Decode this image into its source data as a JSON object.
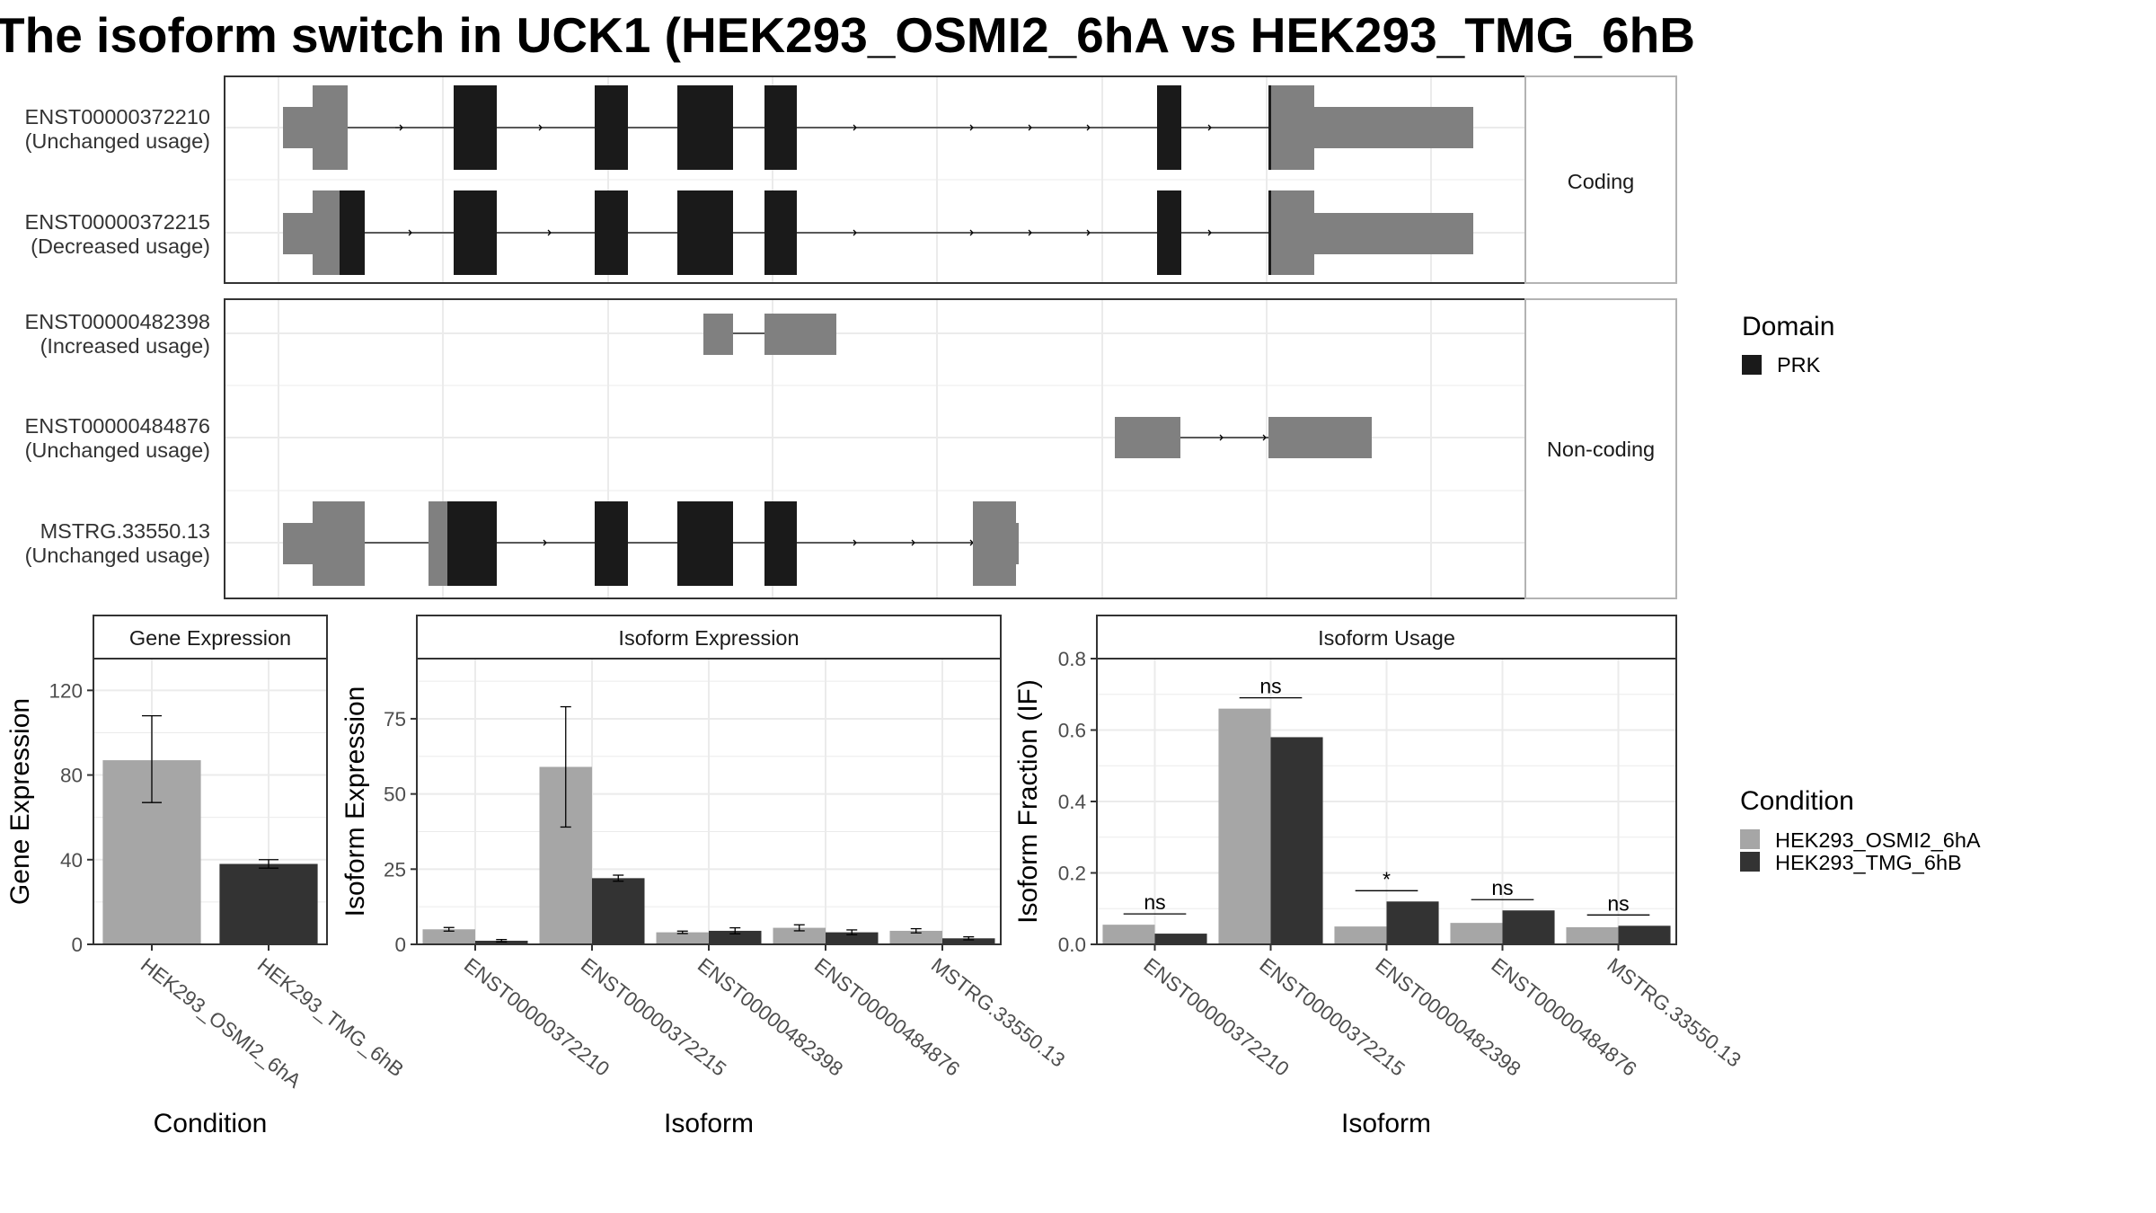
{
  "title": "The isoform switch in UCK1 (HEK293_OSMI2_6hA vs HEK293_TMG_6hB",
  "colors": {
    "utr": "#808080",
    "cds": "#1a1a1a",
    "condition_a": "#a6a6a6",
    "condition_b": "#333333",
    "grid": "#ebebeb",
    "panel_border": "#333333",
    "strip_border": "#b3b3b3"
  },
  "transcript_panels": [
    {
      "label": "Coding",
      "transcripts": [
        {
          "id": "ENST00000372210",
          "status": "(Unchanged usage)"
        },
        {
          "id": "ENST00000372215",
          "status": "(Decreased usage)"
        }
      ]
    },
    {
      "label": "Non-coding",
      "transcripts": [
        {
          "id": "ENST00000482398",
          "status": "(Increased usage)"
        },
        {
          "id": "ENST00000484876",
          "status": "(Unchanged usage)"
        },
        {
          "id": "MSTRG.33550.13",
          "status": "(Unchanged usage)"
        }
      ]
    }
  ],
  "domain_legend": {
    "title": "Domain",
    "items": [
      {
        "label": "PRK",
        "color": "#1a1a1a"
      }
    ]
  },
  "condition_legend": {
    "title": "Condition",
    "items": [
      {
        "label": "HEK293_OSMI2_6hA",
        "color": "#a6a6a6"
      },
      {
        "label": "HEK293_TMG_6hB",
        "color": "#333333"
      }
    ]
  },
  "chart_data": [
    {
      "type": "bar",
      "panel_title": "Gene Expression",
      "xlabel": "Condition",
      "ylabel": "Gene Expression",
      "categories": [
        "HEK293_OSMI2_6hA",
        "HEK293_TMG_6hB"
      ],
      "ylim": [
        0,
        135
      ],
      "yticks": [
        "0",
        "40",
        "80",
        "120"
      ],
      "values": [
        87,
        38
      ],
      "errors": [
        [
          67,
          108
        ],
        [
          36,
          40
        ]
      ],
      "colors": [
        "#a6a6a6",
        "#333333"
      ]
    },
    {
      "type": "bar",
      "panel_title": "Isoform Expression",
      "xlabel": "Isoform",
      "ylabel": "Isoform Expression",
      "categories": [
        "ENST00000372210",
        "ENST00000372215",
        "ENST00000482398",
        "ENST00000484876",
        "MSTRG.33550.13"
      ],
      "ylim": [
        0,
        95
      ],
      "yticks": [
        "0",
        "25",
        "50",
        "75"
      ],
      "series": [
        {
          "name": "HEK293_OSMI2_6hA",
          "values": [
            5,
            59,
            4,
            5.5,
            4.5
          ],
          "errors": [
            [
              4.4,
              5.6
            ],
            [
              39,
              79
            ],
            [
              3.6,
              4.4
            ],
            [
              4.5,
              6.5
            ],
            [
              3.8,
              5.2
            ]
          ]
        },
        {
          "name": "HEK293_TMG_6hB",
          "values": [
            1.2,
            22,
            4.5,
            4,
            2
          ],
          "errors": [
            [
              0.8,
              1.6
            ],
            [
              21,
              23
            ],
            [
              3.5,
              5.5
            ],
            [
              3.2,
              4.8
            ],
            [
              1.5,
              2.5
            ]
          ]
        }
      ]
    },
    {
      "type": "bar",
      "panel_title": "Isoform Usage",
      "xlabel": "Isoform",
      "ylabel": "Isoform Fraction (IF)",
      "categories": [
        "ENST00000372210",
        "ENST00000372215",
        "ENST00000482398",
        "ENST00000484876",
        "MSTRG.33550.13"
      ],
      "ylim": [
        0,
        0.8
      ],
      "yticks": [
        "0.0",
        "0.2",
        "0.4",
        "0.6",
        "0.8"
      ],
      "series": [
        {
          "name": "HEK293_OSMI2_6hA",
          "values": [
            0.055,
            0.66,
            0.05,
            0.06,
            0.048
          ]
        },
        {
          "name": "HEK293_TMG_6hB",
          "values": [
            0.03,
            0.58,
            0.12,
            0.095,
            0.052
          ]
        }
      ],
      "significance": [
        "ns",
        "ns",
        "*",
        "ns",
        "ns"
      ]
    }
  ]
}
